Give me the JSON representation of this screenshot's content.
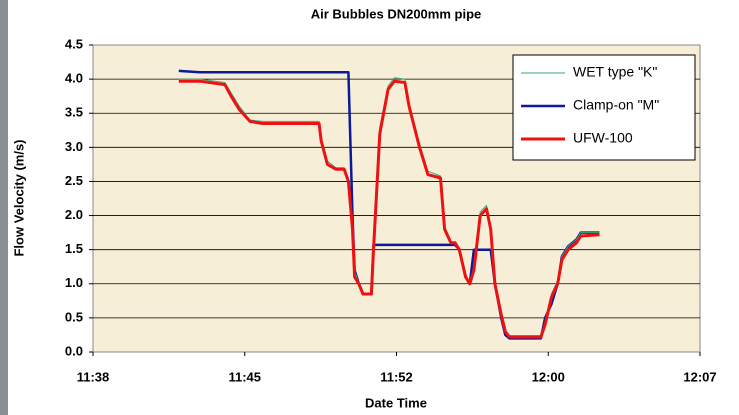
{
  "chart_data": {
    "type": "line",
    "title": "Air Bubbles DN200mm pipe",
    "x_label": "Date Time",
    "y_label": "Flow Velocity (m/s)",
    "x": [
      702.1,
      703.1,
      704.3,
      704.6,
      705.0,
      705.5,
      706.1,
      707.4,
      708.8,
      708.9,
      709.2,
      709.6,
      710.0,
      710.2,
      710.4,
      710.5,
      710.7,
      710.9,
      711.3,
      711.4,
      711.7,
      712.1,
      712.4,
      712.9,
      713.1,
      713.6,
      714.0,
      714.6,
      714.8,
      715.1,
      715.3,
      715.5,
      715.8,
      716.0,
      716.2,
      716.5,
      716.8,
      717.0,
      717.2,
      717.5,
      717.7,
      717.9,
      719.4,
      719.6,
      719.9,
      720.2,
      720.4,
      720.7,
      721.1,
      721.3,
      722.2
    ],
    "series": [
      {
        "name": "WET type \"K\"",
        "color": "#3aa876",
        "width": 1,
        "values": [
          4.0,
          4.0,
          3.95,
          3.8,
          3.6,
          3.4,
          3.38,
          3.38,
          3.38,
          3.15,
          2.8,
          2.7,
          2.7,
          2.55,
          1.9,
          1.2,
          1.0,
          0.85,
          0.85,
          1.6,
          3.3,
          3.9,
          4.02,
          4.0,
          3.65,
          3.05,
          2.65,
          2.58,
          1.85,
          1.62,
          1.6,
          1.5,
          1.15,
          1.0,
          1.25,
          2.05,
          2.15,
          1.85,
          1.05,
          0.6,
          0.3,
          0.24,
          0.24,
          0.45,
          0.85,
          1.05,
          1.4,
          1.55,
          1.65,
          1.75,
          1.75
        ]
      },
      {
        "name": "Clamp-on \"M\"",
        "color": "#0a1a9a",
        "width": 2.5,
        "values": [
          4.12,
          4.1,
          4.1,
          4.1,
          4.1,
          4.1,
          4.1,
          4.1,
          4.1,
          4.1,
          4.1,
          4.1,
          4.1,
          4.1,
          2.0,
          1.2,
          1.0,
          0.85,
          0.85,
          1.57,
          1.57,
          1.57,
          1.57,
          1.57,
          1.57,
          1.57,
          1.57,
          1.57,
          1.57,
          1.57,
          1.57,
          1.5,
          1.1,
          1.0,
          1.5,
          1.5,
          1.5,
          1.5,
          1.0,
          0.5,
          0.25,
          0.2,
          0.2,
          0.5,
          0.7,
          1.0,
          1.4,
          1.55,
          1.65,
          1.75,
          1.75
        ]
      },
      {
        "name": "UFW-100",
        "color": "#ee1111",
        "width": 3,
        "values": [
          3.97,
          3.97,
          3.92,
          3.75,
          3.55,
          3.38,
          3.35,
          3.35,
          3.35,
          3.1,
          2.75,
          2.68,
          2.68,
          2.5,
          1.8,
          1.1,
          1.0,
          0.85,
          0.85,
          1.5,
          3.2,
          3.85,
          3.97,
          3.95,
          3.6,
          3.0,
          2.6,
          2.55,
          1.8,
          1.6,
          1.6,
          1.5,
          1.1,
          1.0,
          1.2,
          2.0,
          2.1,
          1.8,
          1.0,
          0.55,
          0.3,
          0.22,
          0.22,
          0.4,
          0.8,
          1.0,
          1.35,
          1.5,
          1.6,
          1.7,
          1.72
        ]
      }
    ],
    "xlim": [
      698,
      727
    ],
    "xticks": [
      {
        "value": 698,
        "label": "11:38"
      },
      {
        "value": 705.25,
        "label": "11:45"
      },
      {
        "value": 712.5,
        "label": "11:52"
      },
      {
        "value": 719.75,
        "label": "12:00"
      },
      {
        "value": 727,
        "label": "12:07"
      }
    ],
    "ylim": [
      0,
      4.5
    ],
    "yticks": [
      {
        "value": 0,
        "label": "0.0"
      },
      0.5,
      {
        "value": 1,
        "label": "1.0"
      },
      1.5,
      {
        "value": 2,
        "label": "2.0"
      },
      2.5,
      {
        "value": 3,
        "label": "3.0"
      },
      3.5,
      {
        "value": 4,
        "label": "4.0"
      },
      4.5
    ],
    "grid": true,
    "legend": "top-right"
  }
}
